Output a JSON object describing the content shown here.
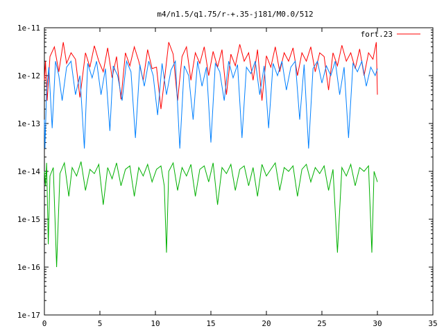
{
  "chart_data": {
    "type": "line",
    "title": "m4/n1.5/q1.75/r-+.35-j181/M0.0/512",
    "xlabel": "",
    "ylabel": "",
    "xlim": [
      0,
      35
    ],
    "ylim": [
      1e-17,
      1e-11
    ],
    "yscale": "log",
    "grid": false,
    "legend_position": "top-right",
    "x_ticks": [
      {
        "value": 0,
        "label": "0"
      },
      {
        "value": 5,
        "label": "5"
      },
      {
        "value": 10,
        "label": "10"
      },
      {
        "value": 15,
        "label": "15"
      },
      {
        "value": 20,
        "label": "20"
      },
      {
        "value": 25,
        "label": "25"
      },
      {
        "value": 30,
        "label": "30"
      },
      {
        "value": 35,
        "label": "35"
      }
    ],
    "y_ticks": [
      {
        "value": 1e-11,
        "label": "1e-11"
      },
      {
        "value": 1e-12,
        "label": "1e-12"
      },
      {
        "value": 1e-13,
        "label": "1e-13"
      },
      {
        "value": 1e-14,
        "label": "1e-14"
      },
      {
        "value": 1e-15,
        "label": "1e-15"
      },
      {
        "value": 1e-16,
        "label": "1e-16"
      },
      {
        "value": 1e-17,
        "label": "1e-17"
      }
    ],
    "series": [
      {
        "name": "fort.23",
        "color": "#ff0000",
        "x": [
          0.0,
          0.1,
          0.25,
          0.5,
          0.9,
          1.3,
          1.7,
          2.0,
          2.4,
          2.8,
          3.2,
          3.7,
          4.1,
          4.5,
          4.9,
          5.3,
          5.7,
          6.1,
          6.5,
          6.9,
          7.3,
          7.7,
          8.1,
          8.5,
          8.9,
          9.3,
          9.7,
          10.1,
          10.5,
          10.9,
          11.2,
          11.6,
          12.0,
          12.4,
          12.8,
          13.2,
          13.6,
          14.0,
          14.4,
          14.8,
          15.2,
          15.6,
          16.0,
          16.4,
          16.8,
          17.2,
          17.6,
          18.0,
          18.4,
          18.8,
          19.2,
          19.6,
          20.0,
          20.4,
          20.8,
          21.2,
          21.6,
          22.0,
          22.4,
          22.8,
          23.2,
          23.6,
          24.0,
          24.4,
          24.8,
          25.2,
          25.6,
          26.0,
          26.4,
          26.8,
          27.2,
          27.6,
          28.0,
          28.4,
          28.8,
          29.2,
          29.6,
          29.9,
          30.0
        ],
        "values": [
          8e-13,
          2e-12,
          3e-13,
          2.5e-12,
          4e-12,
          1.2e-12,
          5e-12,
          1.8e-12,
          3e-12,
          2.2e-12,
          3.5e-13,
          3e-12,
          1.5e-12,
          4.2e-12,
          2e-12,
          1.2e-12,
          3.8e-12,
          9e-13,
          2.5e-12,
          3.2e-13,
          3e-12,
          1.6e-12,
          4e-12,
          2e-12,
          8e-13,
          3.5e-12,
          1.4e-12,
          1.5e-12,
          2e-13,
          1.2e-12,
          5e-12,
          2.8e-12,
          3e-13,
          2.5e-12,
          4e-12,
          8e-13,
          3e-12,
          1.8e-12,
          4e-12,
          1e-12,
          3.2e-12,
          1.5e-12,
          3.5e-12,
          4e-13,
          2.8e-12,
          1.6e-12,
          4.5e-12,
          2e-12,
          3e-12,
          8e-13,
          3.5e-12,
          3e-13,
          2.6e-12,
          1.5e-12,
          4e-12,
          1.2e-12,
          3e-12,
          2e-12,
          3.8e-12,
          1e-12,
          3e-12,
          2e-12,
          4e-12,
          1.2e-12,
          3e-12,
          2.5e-12,
          5e-13,
          3e-12,
          1.6e-12,
          4.3e-12,
          2e-12,
          3e-12,
          1.4e-12,
          3.6e-12,
          1e-12,
          3e-12,
          2.2e-12,
          5e-12,
          4e-13
        ]
      },
      {
        "name": "",
        "color": "#0080ff",
        "x": [
          0.0,
          0.05,
          0.2,
          0.4,
          0.7,
          1.0,
          1.3,
          1.6,
          2.0,
          2.4,
          2.8,
          3.2,
          3.6,
          3.9,
          4.3,
          4.7,
          5.1,
          5.5,
          5.9,
          6.2,
          6.6,
          7.0,
          7.4,
          7.8,
          8.2,
          8.6,
          9.0,
          9.4,
          9.8,
          10.2,
          10.6,
          11.0,
          11.4,
          11.8,
          12.2,
          12.6,
          13.0,
          13.4,
          13.8,
          14.2,
          14.6,
          15.0,
          15.4,
          15.8,
          16.2,
          16.6,
          17.0,
          17.4,
          17.8,
          18.2,
          18.6,
          19.0,
          19.4,
          19.8,
          20.2,
          20.6,
          21.0,
          21.4,
          21.8,
          22.2,
          22.6,
          23.0,
          23.4,
          23.8,
          24.2,
          24.6,
          25.0,
          25.4,
          25.8,
          26.2,
          26.6,
          27.0,
          27.4,
          27.8,
          28.2,
          28.6,
          29.0,
          29.4,
          29.8,
          30.0
        ],
        "values": [
          1.2e-13,
          3e-14,
          5e-13,
          1.5e-12,
          8e-14,
          2e-12,
          1e-12,
          3e-13,
          1.5e-12,
          2e-12,
          4e-13,
          1e-12,
          3e-14,
          1.8e-12,
          9e-13,
          2e-12,
          4e-13,
          1.4e-12,
          7e-14,
          1.6e-12,
          1e-12,
          3e-13,
          2e-12,
          1.2e-12,
          5e-14,
          1.7e-12,
          6e-13,
          2e-12,
          1e-12,
          1.5e-13,
          1.8e-12,
          4e-13,
          1.3e-12,
          2e-12,
          3e-14,
          1.6e-12,
          1e-12,
          1.2e-13,
          2e-12,
          6e-13,
          1.5e-12,
          4e-14,
          1.8e-12,
          1.2e-12,
          3e-13,
          2e-12,
          9e-13,
          1.7e-12,
          5e-14,
          1.5e-12,
          1.1e-12,
          2e-12,
          4e-13,
          1.6e-12,
          8e-14,
          1.8e-12,
          1e-12,
          2e-12,
          5e-13,
          1.5e-12,
          2e-12,
          1.2e-13,
          1.7e-12,
          3e-14,
          1.4e-12,
          2e-12,
          7e-13,
          1.6e-12,
          1e-12,
          2e-12,
          4e-13,
          1.5e-12,
          5e-14,
          1.8e-12,
          1.2e-12,
          2e-12,
          6e-13,
          1.5e-12,
          1e-12,
          1.4e-12
        ]
      },
      {
        "name": "",
        "color": "#00b000",
        "x": [
          0.0,
          0.1,
          0.2,
          0.35,
          0.5,
          0.8,
          1.1,
          1.4,
          1.8,
          2.2,
          2.5,
          2.9,
          3.3,
          3.7,
          4.1,
          4.5,
          4.9,
          5.3,
          5.7,
          6.1,
          6.5,
          6.9,
          7.3,
          7.7,
          8.1,
          8.5,
          8.9,
          9.3,
          9.7,
          10.1,
          10.5,
          10.8,
          11.0,
          11.2,
          11.6,
          12.0,
          12.4,
          12.8,
          13.2,
          13.6,
          14.0,
          14.4,
          14.8,
          15.2,
          15.6,
          16.0,
          16.4,
          16.8,
          17.2,
          17.6,
          18.0,
          18.4,
          18.8,
          19.2,
          19.6,
          20.0,
          20.4,
          20.8,
          21.2,
          21.6,
          22.0,
          22.4,
          22.8,
          23.2,
          23.6,
          24.0,
          24.4,
          24.8,
          25.2,
          25.6,
          26.0,
          26.4,
          26.8,
          27.2,
          27.6,
          28.0,
          28.4,
          28.8,
          29.2,
          29.5,
          29.7,
          30.0
        ],
        "values": [
          1e-14,
          5e-15,
          1.5e-14,
          3e-16,
          8e-15,
          1.2e-14,
          1e-16,
          9e-15,
          1.5e-14,
          3e-15,
          1.2e-14,
          8e-15,
          1.6e-14,
          4e-15,
          1.1e-14,
          9e-15,
          1.4e-14,
          2e-15,
          1.2e-14,
          7e-15,
          1.5e-14,
          5e-15,
          1.1e-14,
          1.3e-14,
          3e-15,
          1.2e-14,
          8e-15,
          1.4e-14,
          6e-15,
          1.1e-14,
          1.3e-14,
          5e-15,
          2e-16,
          1e-14,
          1.5e-14,
          4e-15,
          1.2e-14,
          8e-15,
          1.4e-14,
          3e-15,
          1.1e-14,
          1.3e-14,
          6e-15,
          1.5e-14,
          2e-15,
          1.2e-14,
          9e-15,
          1.4e-14,
          4e-15,
          1.1e-14,
          1.3e-14,
          5e-15,
          1.2e-14,
          3e-15,
          1.4e-14,
          8e-15,
          1.1e-14,
          1.5e-14,
          4e-15,
          1.2e-14,
          1e-14,
          1.3e-14,
          3e-15,
          1.1e-14,
          1.4e-14,
          6e-15,
          1.2e-14,
          9e-15,
          1.3e-14,
          4e-15,
          1.1e-14,
          2e-16,
          1.2e-14,
          8e-15,
          1.4e-14,
          5e-15,
          1.2e-14,
          1e-14,
          1.3e-14,
          2e-16,
          1e-14,
          6e-15
        ]
      }
    ]
  }
}
